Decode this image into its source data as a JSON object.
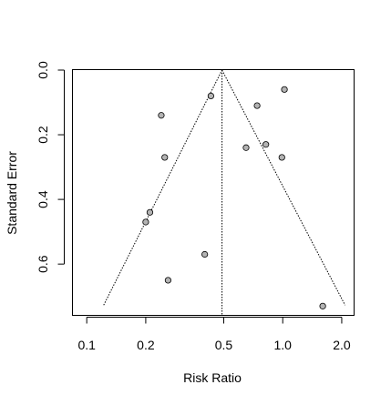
{
  "chart_data": {
    "type": "scatter",
    "title": "",
    "xlabel": "Risk Ratio",
    "ylabel": "Standard Error",
    "x_scale": "log",
    "y_reversed": true,
    "x_ticks": [
      0.1,
      0.2,
      0.5,
      1.0,
      2.0
    ],
    "x_tick_labels": [
      "0.1",
      "0.2",
      "0.5",
      "1.0",
      "2.0"
    ],
    "y_ticks": [
      0.0,
      0.2,
      0.4,
      0.6
    ],
    "y_tick_labels": [
      "0.0",
      "0.2",
      "0.4",
      "0.6"
    ],
    "xlim": [
      0.085,
      2.3
    ],
    "ylim": [
      0.0,
      0.76
    ],
    "grid": false,
    "summary_estimate": 0.49,
    "funnel": {
      "apex": {
        "x": 0.49,
        "y": 0.0
      },
      "left_base": {
        "x": 0.122,
        "y": 0.727
      },
      "right_base": {
        "x": 2.08,
        "y": 0.727
      }
    },
    "points": [
      {
        "x": 0.43,
        "y": 0.08
      },
      {
        "x": 0.24,
        "y": 0.14
      },
      {
        "x": 0.25,
        "y": 0.27
      },
      {
        "x": 0.21,
        "y": 0.44
      },
      {
        "x": 0.2,
        "y": 0.47
      },
      {
        "x": 0.4,
        "y": 0.57
      },
      {
        "x": 0.26,
        "y": 0.65
      },
      {
        "x": 0.74,
        "y": 0.11
      },
      {
        "x": 1.02,
        "y": 0.06
      },
      {
        "x": 0.65,
        "y": 0.24
      },
      {
        "x": 0.82,
        "y": 0.23
      },
      {
        "x": 0.99,
        "y": 0.27
      },
      {
        "x": 1.6,
        "y": 0.73
      }
    ]
  }
}
